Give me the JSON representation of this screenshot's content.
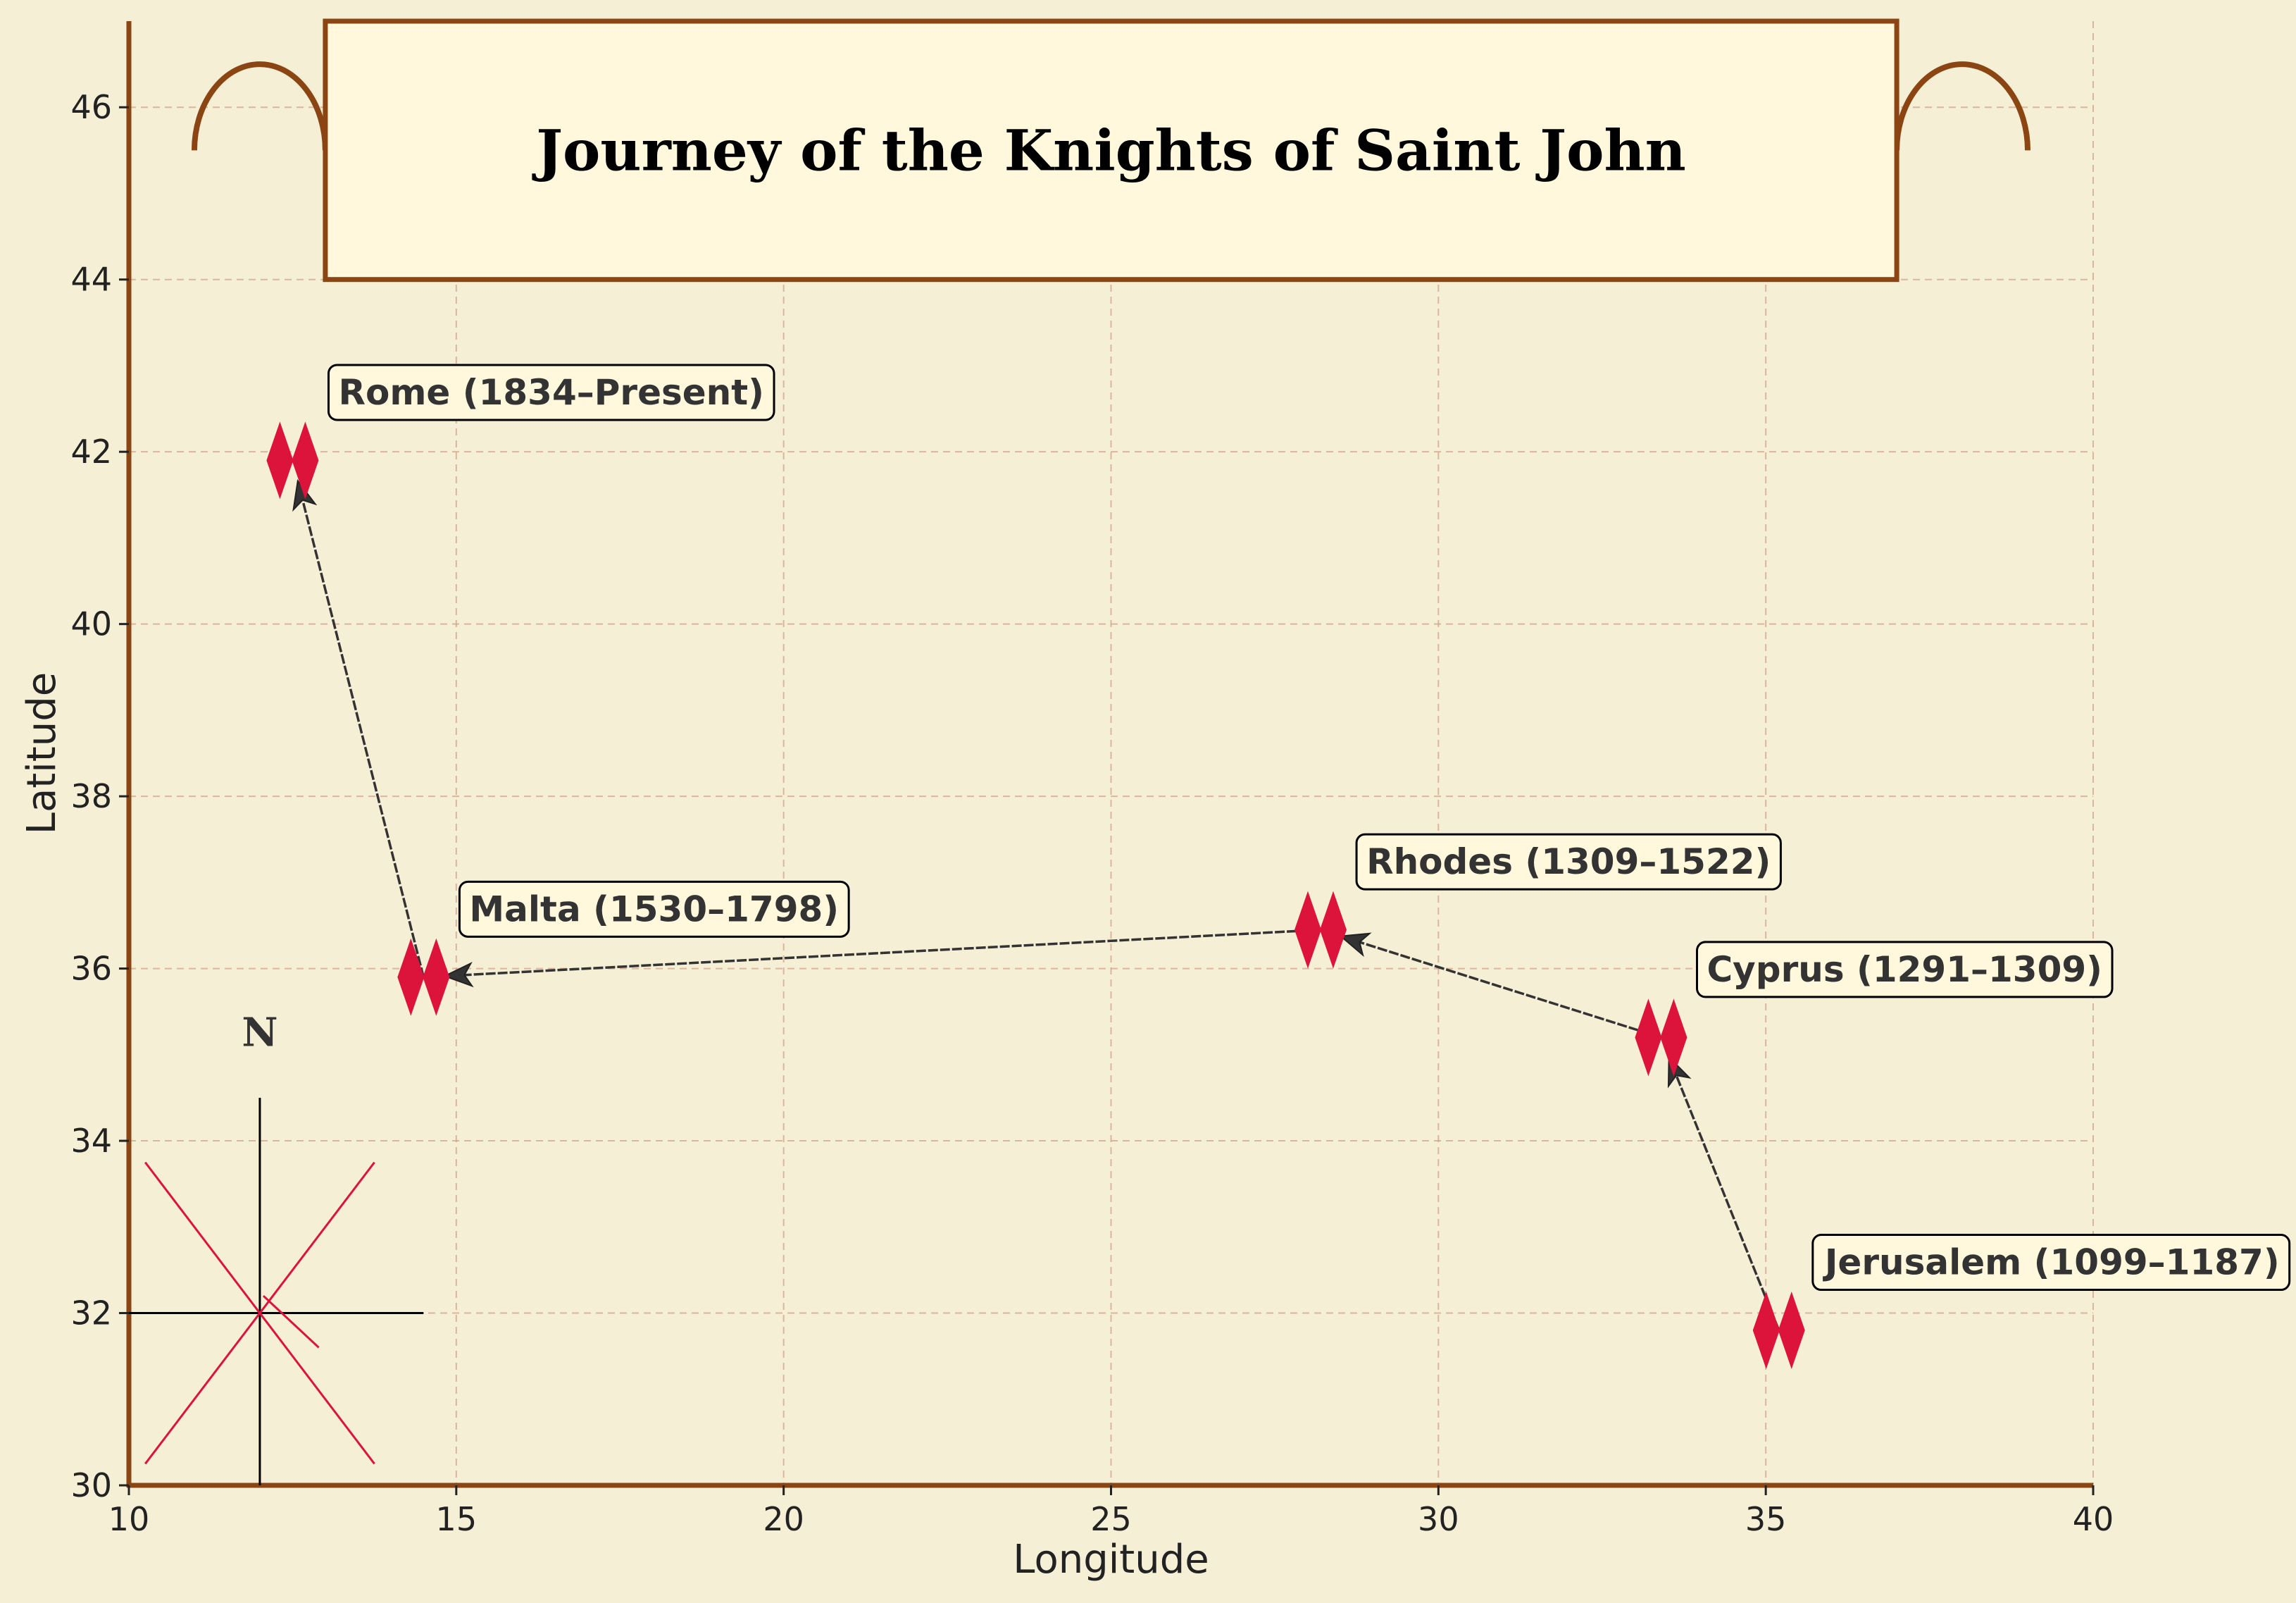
{
  "chart_data": {
    "type": "line",
    "title": "Journey of the Knights of Saint John",
    "xlabel": "Longitude",
    "ylabel": "Latitude",
    "xlim": [
      10,
      40
    ],
    "ylim": [
      30,
      47
    ],
    "xticks": [
      10,
      15,
      20,
      25,
      30,
      35,
      40
    ],
    "yticks": [
      30,
      32,
      34,
      36,
      38,
      40,
      42,
      44,
      46
    ],
    "xtick_labels": [
      "10",
      "15",
      "20",
      "25",
      "30",
      "35",
      "40"
    ],
    "ytick_labels": [
      "30",
      "32",
      "34",
      "36",
      "38",
      "40",
      "42",
      "44",
      "46"
    ],
    "grid": true,
    "points": [
      {
        "name": "Jerusalem",
        "label": "Jerusalem (1099–1187)",
        "lon": 35.2,
        "lat": 31.8
      },
      {
        "name": "Cyprus",
        "label": "Cyprus (1291–1309)",
        "lon": 33.4,
        "lat": 35.2
      },
      {
        "name": "Rhodes",
        "label": "Rhodes (1309–1522)",
        "lon": 28.2,
        "lat": 36.45
      },
      {
        "name": "Malta",
        "label": "Malta (1530–1798)",
        "lon": 14.5,
        "lat": 35.9
      },
      {
        "name": "Rome",
        "label": "Rome (1834–Present)",
        "lon": 12.5,
        "lat": 41.9
      }
    ],
    "compass": {
      "label": "N",
      "center_lon": 12,
      "center_lat": 32
    }
  },
  "colors": {
    "background": "#f5efd6",
    "frame": "#8b4513",
    "banner": "#fff8dc",
    "grid": "#d2a38a",
    "marker": "#dc143c",
    "arrow": "#333333"
  }
}
